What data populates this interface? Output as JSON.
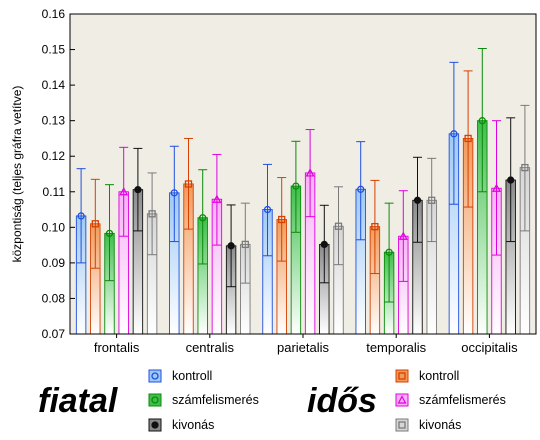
{
  "chart_data": {
    "type": "bar",
    "ylabel": "központiság (teljes gráfra vetítve)",
    "ylim": [
      0.07,
      0.16
    ],
    "yticks": [
      "0.07",
      "0.08",
      "0.09",
      "0.10",
      "0.11",
      "0.12",
      "0.13",
      "0.14",
      "0.15",
      "0.16"
    ],
    "categories": [
      "frontalis",
      "centralis",
      "parietalis",
      "temporalis",
      "occipitalis"
    ],
    "grid": false,
    "legend_position": "bottom",
    "groups": [
      {
        "label": "fiatal",
        "shade": "light"
      },
      {
        "label": "idős",
        "shade": "dark"
      }
    ],
    "series": [
      {
        "name": "kontroll",
        "group": "fiatal",
        "marker": "circle",
        "color": "#1f4fe0",
        "fill": "#9ec9f5",
        "values": [
          0.1032,
          0.1097,
          0.105,
          0.1107,
          0.1263
        ],
        "lower": [
          0.09,
          0.096,
          0.092,
          0.0965,
          0.1065
        ],
        "upper": [
          0.1165,
          0.1228,
          0.1177,
          0.1241,
          0.1464
        ]
      },
      {
        "name": "kontroll",
        "group": "idős",
        "marker": "square",
        "color": "#d64000",
        "fill": "#f29a5a",
        "values": [
          0.101,
          0.1122,
          0.1022,
          0.1002,
          0.125
        ],
        "lower": [
          0.0885,
          0.0995,
          0.0905,
          0.087,
          0.1057
        ],
        "upper": [
          0.1135,
          0.125,
          0.114,
          0.1132,
          0.144
        ]
      },
      {
        "name": "számfelismerés",
        "group": "fiatal",
        "marker": "circle",
        "color": "#0a8a0a",
        "fill": "#3fbf4a",
        "values": [
          0.0983,
          0.1027,
          0.1116,
          0.093,
          0.13
        ],
        "lower": [
          0.085,
          0.0897,
          0.0986,
          0.079,
          0.11
        ],
        "upper": [
          0.112,
          0.1162,
          0.1242,
          0.1068,
          0.1503
        ]
      },
      {
        "name": "számfelismerés",
        "group": "idős",
        "marker": "triangle",
        "color": "#e000e0",
        "fill": "#f7b0f5",
        "values": [
          0.11,
          0.1079,
          0.1153,
          0.0975,
          0.111
        ],
        "lower": [
          0.0975,
          0.095,
          0.103,
          0.0848,
          0.0922
        ],
        "upper": [
          0.1225,
          0.1205,
          0.1275,
          0.1103,
          0.13
        ]
      },
      {
        "name": "kivonás",
        "group": "fiatal",
        "marker": "circle",
        "color": "#111111",
        "fill": "#8a8a8a",
        "values": [
          0.1106,
          0.0948,
          0.0952,
          0.1076,
          0.1133
        ],
        "lower": [
          0.099,
          0.0833,
          0.0844,
          0.0958,
          0.096
        ],
        "upper": [
          0.1222,
          0.1063,
          0.1062,
          0.1197,
          0.1308
        ]
      },
      {
        "name": "kivonás",
        "group": "idős",
        "marker": "square",
        "color": "#7a7a7a",
        "fill": "#d6d6d6",
        "values": [
          0.1038,
          0.0952,
          0.1003,
          0.1076,
          0.1168
        ],
        "lower": [
          0.0923,
          0.0843,
          0.0895,
          0.096,
          0.099
        ],
        "upper": [
          0.1153,
          0.1068,
          0.1114,
          0.1194,
          0.1343
        ]
      }
    ]
  }
}
